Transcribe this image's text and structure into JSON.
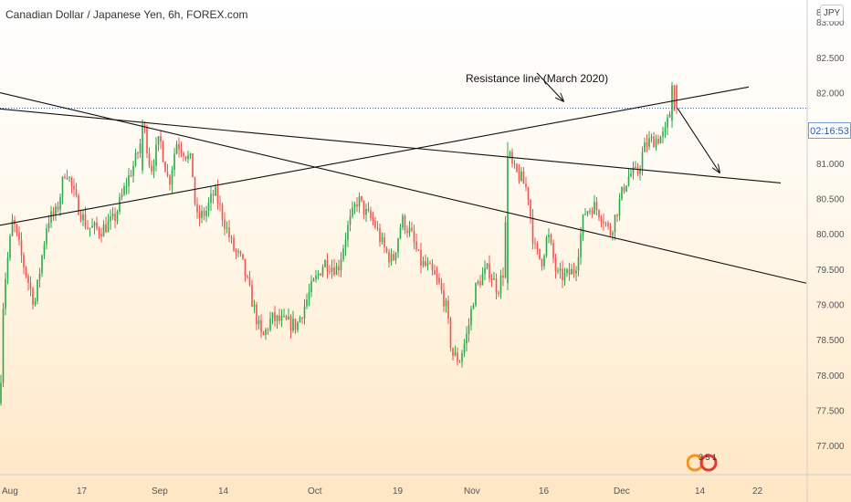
{
  "header": {
    "title": "Canadian Dollar / Japanese Yen, 6h, FOREX.com",
    "currency_badge": "JPY"
  },
  "annotation": {
    "text": "Resistance line (March 2020)"
  },
  "price_tag": {
    "time_label": "02:16:53",
    "price": 81.78
  },
  "logo": {
    "text": "3 5 1",
    "icon": "tradingview-logo-icon"
  },
  "colors": {
    "up": "#26a69a",
    "up_bar": "#2ea84a",
    "down": "#ef5350",
    "line": "#111111",
    "price_line": "#2a5db0",
    "axis_text": "#555555"
  },
  "chart_data": {
    "type": "candlestick",
    "symbol": "Canadian Dollar / Japanese Yen, 6h, FOREX.com",
    "ylim": [
      76.6,
      83.3
    ],
    "yticks": [
      {
        "v": 83.0,
        "label": "83.000"
      },
      {
        "v": 82.5,
        "label": "82.500"
      },
      {
        "v": 82.0,
        "label": "82.000"
      },
      {
        "v": 81.5,
        "label": "81.500"
      },
      {
        "v": 81.0,
        "label": "81.000"
      },
      {
        "v": 80.5,
        "label": "80.500"
      },
      {
        "v": 80.0,
        "label": "80.000"
      },
      {
        "v": 79.5,
        "label": "79.500"
      },
      {
        "v": 79.0,
        "label": "79.000"
      },
      {
        "v": 78.5,
        "label": "78.500"
      },
      {
        "v": 78.0,
        "label": "78.000"
      },
      {
        "v": 77.5,
        "label": "77.500"
      },
      {
        "v": 77.0,
        "label": "77.000"
      }
    ],
    "top_tick_partial": "83.",
    "xticks": [
      "Aug",
      "17",
      "Sep",
      "14",
      "Oct",
      "19",
      "Nov",
      "16",
      "Dec",
      "14",
      "22"
    ],
    "series_path": [
      [
        0,
        77.6
      ],
      [
        4,
        79.2
      ],
      [
        14,
        80.2
      ],
      [
        25,
        79.6
      ],
      [
        38,
        79.0
      ],
      [
        52,
        80.2
      ],
      [
        62,
        80.3
      ],
      [
        72,
        80.95
      ],
      [
        82,
        80.5
      ],
      [
        95,
        80.1
      ],
      [
        110,
        80.05
      ],
      [
        125,
        80.2
      ],
      [
        138,
        80.7
      ],
      [
        150,
        81.1
      ],
      [
        158,
        81.5
      ],
      [
        165,
        80.9
      ],
      [
        175,
        81.35
      ],
      [
        185,
        80.7
      ],
      [
        193,
        81.3
      ],
      [
        200,
        81.2
      ],
      [
        210,
        81.0
      ],
      [
        215,
        80.2
      ],
      [
        225,
        80.3
      ],
      [
        235,
        80.6
      ],
      [
        245,
        80.2
      ],
      [
        255,
        79.8
      ],
      [
        265,
        79.6
      ],
      [
        275,
        79.1
      ],
      [
        287,
        78.5
      ],
      [
        297,
        78.8
      ],
      [
        310,
        78.75
      ],
      [
        325,
        78.7
      ],
      [
        340,
        79.2
      ],
      [
        355,
        79.6
      ],
      [
        370,
        79.5
      ],
      [
        380,
        80.05
      ],
      [
        392,
        80.5
      ],
      [
        400,
        80.3
      ],
      [
        410,
        80.15
      ],
      [
        420,
        79.8
      ],
      [
        430,
        79.6
      ],
      [
        440,
        80.2
      ],
      [
        450,
        80.0
      ],
      [
        460,
        79.6
      ],
      [
        470,
        79.5
      ],
      [
        480,
        79.3
      ],
      [
        488,
        79.0
      ],
      [
        495,
        78.3
      ],
      [
        503,
        78.2
      ],
      [
        512,
        78.6
      ],
      [
        520,
        79.2
      ],
      [
        528,
        79.4
      ],
      [
        535,
        79.5
      ],
      [
        545,
        79.2
      ],
      [
        552,
        79.5
      ],
      [
        556,
        81.2
      ],
      [
        562,
        80.9
      ],
      [
        570,
        80.8
      ],
      [
        578,
        80.6
      ],
      [
        585,
        79.8
      ],
      [
        593,
        79.6
      ],
      [
        600,
        80.0
      ],
      [
        610,
        79.4
      ],
      [
        620,
        79.4
      ],
      [
        630,
        79.5
      ],
      [
        640,
        80.3
      ],
      [
        650,
        80.4
      ],
      [
        660,
        80.25
      ],
      [
        668,
        80.0
      ],
      [
        675,
        80.3
      ],
      [
        684,
        80.7
      ],
      [
        690,
        80.85
      ],
      [
        698,
        80.85
      ],
      [
        705,
        81.2
      ],
      [
        710,
        81.3
      ],
      [
        720,
        81.35
      ],
      [
        728,
        81.4
      ],
      [
        734,
        81.75
      ],
      [
        738,
        81.85
      ],
      [
        742,
        81.75
      ]
    ],
    "key_candles": [
      {
        "x": 155,
        "open": 80.9,
        "close": 81.55,
        "high": 81.62,
        "low": 80.85
      },
      {
        "x": 556,
        "open": 79.3,
        "close": 81.1,
        "high": 81.3,
        "low": 79.2
      },
      {
        "x": 737,
        "open": 81.6,
        "close": 82.1,
        "high": 82.15,
        "low": 81.5
      },
      {
        "x": 740,
        "open": 82.1,
        "close": 81.78,
        "high": 82.12,
        "low": 81.7
      }
    ],
    "drawings": [
      {
        "kind": "line",
        "p1": [
          0,
          80.12
        ],
        "p2": [
          820,
          82.08
        ]
      },
      {
        "kind": "line",
        "p1": [
          0,
          81.77
        ],
        "p2": [
          855,
          80.72
        ]
      },
      {
        "kind": "line",
        "p1": [
          0,
          82.0
        ],
        "p2": [
          883,
          79.3
        ]
      },
      {
        "kind": "arrow",
        "p1": [
          588,
          82.28
        ],
        "p2": [
          617,
          81.88
        ]
      },
      {
        "kind": "arrow",
        "p1": [
          742,
          81.78
        ],
        "p2": [
          788,
          80.87
        ]
      }
    ]
  }
}
